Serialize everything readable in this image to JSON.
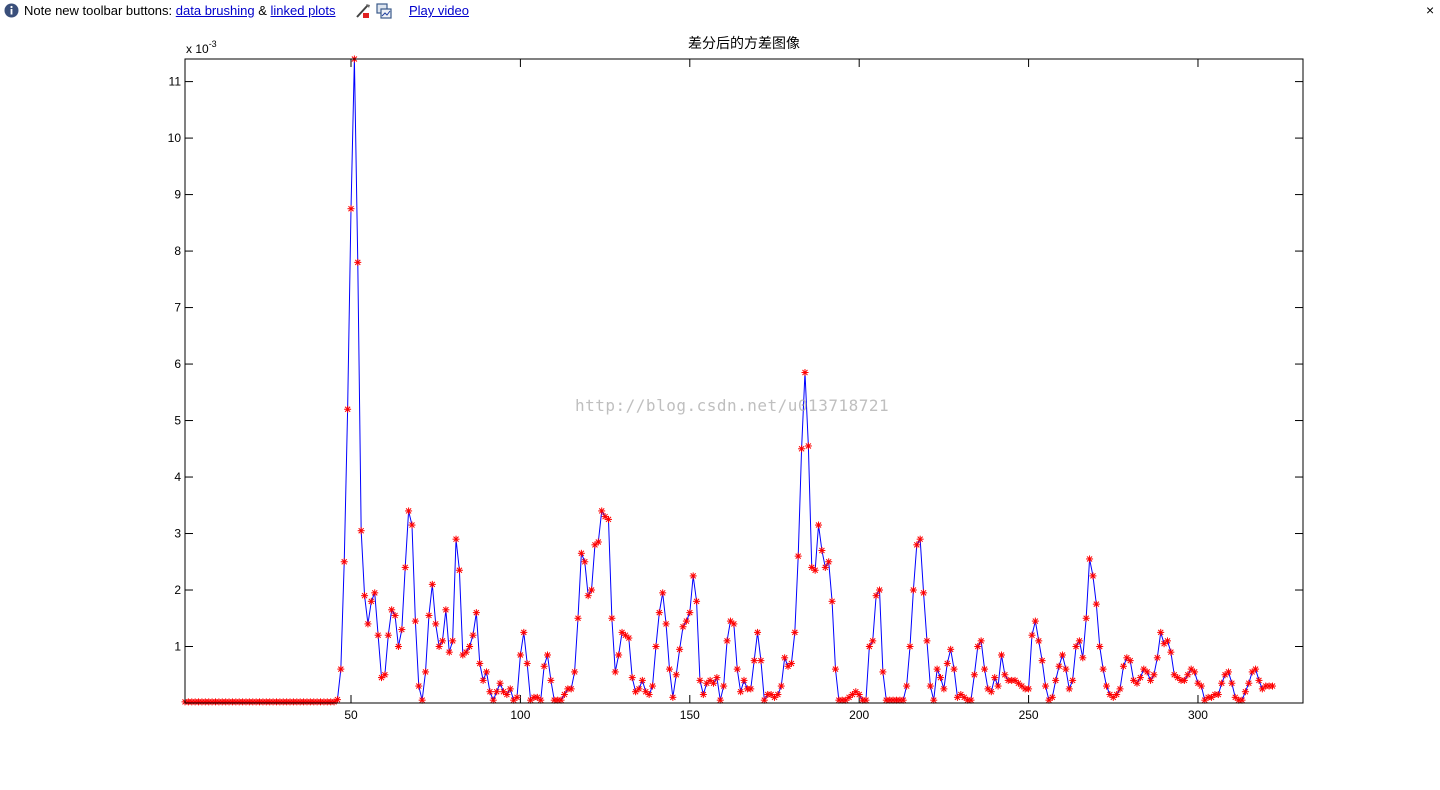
{
  "notice": {
    "prefix": "Note new toolbar buttons:",
    "link_brushing": "data brushing",
    "ampersand": "&",
    "link_linked": "linked plots",
    "play_video": "Play video",
    "close": "×",
    "icons": [
      "info-icon",
      "brush-icon",
      "linked-plots-icon",
      "close-icon"
    ]
  },
  "watermark": "http://blog.csdn.net/u013718721",
  "chart_data": {
    "type": "line",
    "title": "差分后的方差图像",
    "xlabel": "",
    "ylabel": "",
    "exponent_label": "x 10",
    "exponent_power": "-3",
    "xlim": [
      1,
      331
    ],
    "ylim": [
      0,
      11.4
    ],
    "xticks": [
      50,
      100,
      150,
      200,
      250,
      300
    ],
    "yticks": [
      1,
      2,
      3,
      4,
      5,
      6,
      7,
      8,
      9,
      10,
      11
    ],
    "grid": false,
    "legend": "none",
    "line_color": "#0000ff",
    "marker_color": "#ff0000",
    "marker": "*",
    "series": [
      {
        "x_start": 1,
        "values": [
          0.02,
          0.02,
          0.02,
          0.02,
          0.02,
          0.02,
          0.02,
          0.02,
          0.02,
          0.02,
          0.02,
          0.02,
          0.02,
          0.02,
          0.02,
          0.02,
          0.02,
          0.02,
          0.02,
          0.02,
          0.02,
          0.02,
          0.02,
          0.02,
          0.02,
          0.02,
          0.02,
          0.02,
          0.02,
          0.02,
          0.02,
          0.02,
          0.02,
          0.02,
          0.02,
          0.02,
          0.02,
          0.02,
          0.02,
          0.02,
          0.02,
          0.02,
          0.02,
          0.02,
          0.02,
          0.06,
          0.6,
          2.5,
          5.2,
          8.75,
          11.4,
          7.8,
          3.05,
          1.9,
          1.4,
          1.8,
          1.95,
          1.2,
          0.45,
          0.5,
          1.2,
          1.65,
          1.55,
          1.0,
          1.3,
          2.4,
          3.4,
          3.15,
          1.45,
          0.3,
          0.05,
          0.55,
          1.55,
          2.1,
          1.4,
          1.0,
          1.1,
          1.65,
          0.9,
          1.1,
          2.9,
          2.35,
          0.85,
          0.9,
          1.0,
          1.2,
          1.6,
          0.7,
          0.4,
          0.55,
          0.2,
          0.05,
          0.2,
          0.35,
          0.2,
          0.15,
          0.25,
          0.05,
          0.1,
          0.85,
          1.25,
          0.7,
          0.05,
          0.1,
          0.1,
          0.05,
          0.65,
          0.85,
          0.4,
          0.05,
          0.05,
          0.05,
          0.15,
          0.25,
          0.25,
          0.55,
          1.5,
          2.65,
          2.5,
          1.9,
          2.0,
          2.8,
          2.85,
          3.4,
          3.3,
          3.25,
          1.5,
          0.55,
          0.85,
          1.25,
          1.2,
          1.15,
          0.45,
          0.2,
          0.25,
          0.4,
          0.2,
          0.15,
          0.3,
          1.0,
          1.6,
          1.95,
          1.4,
          0.6,
          0.1,
          0.5,
          0.95,
          1.35,
          1.45,
          1.6,
          2.25,
          1.8,
          0.4,
          0.15,
          0.35,
          0.4,
          0.35,
          0.45,
          0.05,
          0.3,
          1.1,
          1.45,
          1.4,
          0.6,
          0.2,
          0.4,
          0.25,
          0.25,
          0.75,
          1.25,
          0.75,
          0.05,
          0.15,
          0.15,
          0.1,
          0.15,
          0.3,
          0.8,
          0.65,
          0.7,
          1.25,
          2.6,
          4.5,
          5.85,
          4.55,
          2.4,
          2.35,
          3.15,
          2.7,
          2.4,
          2.5,
          1.8,
          0.6,
          0.05,
          0.05,
          0.05,
          0.1,
          0.15,
          0.2,
          0.15,
          0.05,
          0.05,
          1.0,
          1.1,
          1.9,
          2.0,
          0.55,
          0.05,
          0.05,
          0.05,
          0.05,
          0.05,
          0.05,
          0.3,
          1.0,
          2.0,
          2.8,
          2.9,
          1.95,
          1.1,
          0.3,
          0.05,
          0.6,
          0.45,
          0.25,
          0.7,
          0.95,
          0.6,
          0.1,
          0.15,
          0.1,
          0.05,
          0.05,
          0.5,
          1.0,
          1.1,
          0.6,
          0.25,
          0.2,
          0.45,
          0.3,
          0.85,
          0.5,
          0.4,
          0.4,
          0.4,
          0.35,
          0.3,
          0.25,
          0.25,
          1.2,
          1.45,
          1.1,
          0.75,
          0.3,
          0.05,
          0.1,
          0.4,
          0.65,
          0.85,
          0.6,
          0.25,
          0.4,
          1.0,
          1.1,
          0.8,
          1.5,
          2.55,
          2.25,
          1.75,
          1.0,
          0.6,
          0.3,
          0.15,
          0.1,
          0.15,
          0.25,
          0.65,
          0.8,
          0.75,
          0.4,
          0.35,
          0.45,
          0.6,
          0.55,
          0.4,
          0.5,
          0.8,
          1.25,
          1.05,
          1.1,
          0.9,
          0.5,
          0.45,
          0.4,
          0.4,
          0.5,
          0.6,
          0.55,
          0.35,
          0.3,
          0.05,
          0.1,
          0.1,
          0.15,
          0.15,
          0.35,
          0.5,
          0.55,
          0.35,
          0.1,
          0.05,
          0.05,
          0.2,
          0.35,
          0.55,
          0.6,
          0.4,
          0.25,
          0.3,
          0.3,
          0.3
        ]
      }
    ]
  }
}
